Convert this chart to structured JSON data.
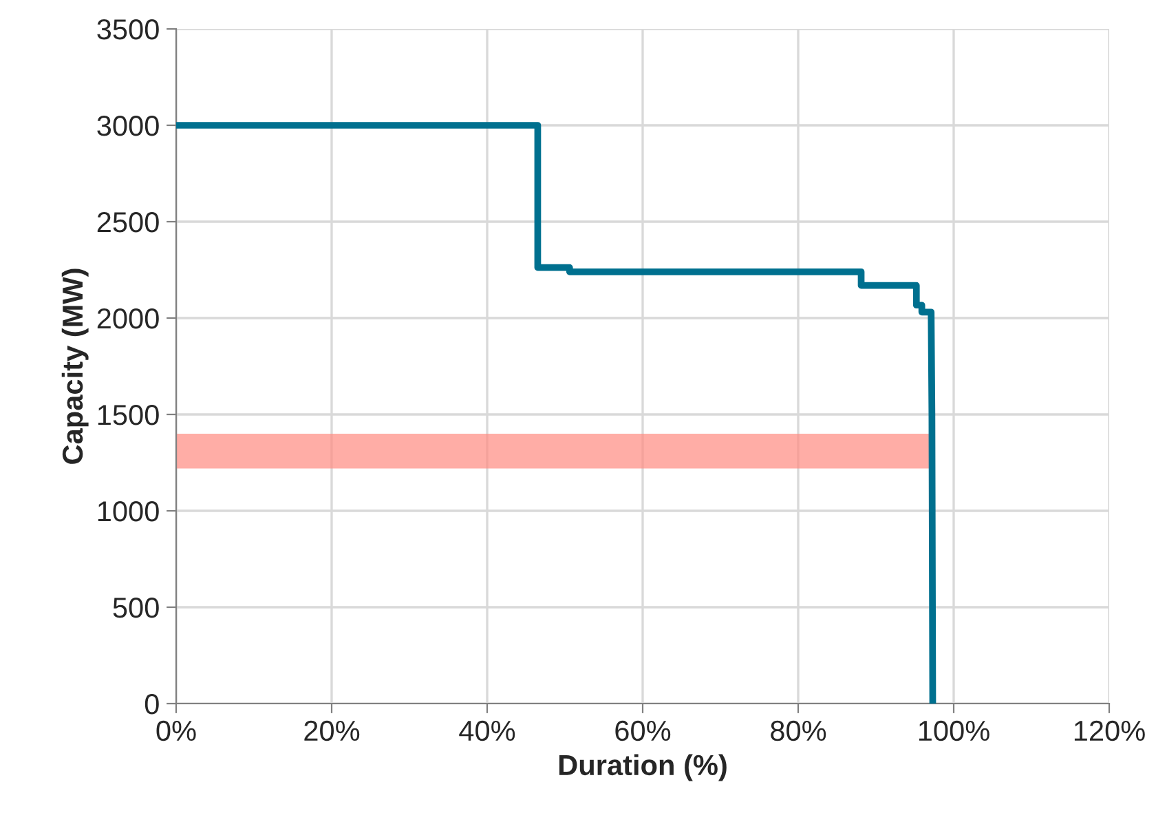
{
  "chart_data": {
    "type": "line",
    "xlabel": "Duration (%)",
    "ylabel": "Capacity (MW)",
    "series": [
      {
        "color": "#00708f",
        "x": [
          0,
          46.5,
          46.5,
          50.6,
          50.6,
          88.1,
          88.1,
          95.2,
          95.2,
          95.9,
          95.9,
          97.1,
          97.2,
          97.3
        ],
        "values": [
          3000,
          3000,
          2262,
          2262,
          2240,
          2240,
          2169,
          2169,
          2067,
          2067,
          2031,
          2031,
          1500,
          0
        ]
      }
    ],
    "bands": [
      {
        "axis": "y",
        "from": 1220,
        "to": 1400,
        "color": "#ff8a80"
      }
    ],
    "xlim": [
      0,
      120
    ],
    "xticks": [
      {
        "value": 0,
        "label": "0%"
      },
      {
        "value": 20,
        "label": "20%"
      },
      {
        "value": 40,
        "label": "40%"
      },
      {
        "value": 60,
        "label": "60%"
      },
      {
        "value": 80,
        "label": "80%"
      },
      {
        "value": 100,
        "label": "100%"
      },
      {
        "value": 120,
        "label": "120%"
      }
    ],
    "ylim": [
      0,
      3500
    ],
    "yticks": [
      0,
      500,
      1000,
      1500,
      2000,
      2500,
      3000,
      3500
    ],
    "grid": true,
    "marker": "none",
    "line_style": "solid"
  }
}
